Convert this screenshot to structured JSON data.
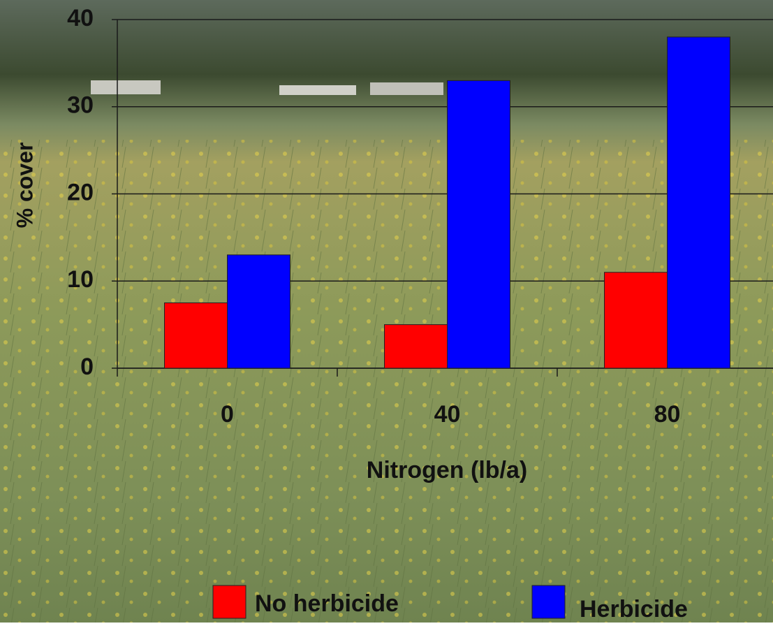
{
  "chart_data": {
    "type": "bar",
    "categories": [
      "0",
      "40",
      "80"
    ],
    "series": [
      {
        "name": "No herbicide",
        "color": "#ff0000",
        "values": [
          7.5,
          5,
          11
        ]
      },
      {
        "name": "Herbicide",
        "color": "#0000ff",
        "values": [
          13,
          33,
          38
        ]
      }
    ],
    "xlabel": "Nitrogen (lb/a)",
    "ylabel": "% cover",
    "ylim": [
      0,
      40
    ],
    "yticks": [
      0,
      10,
      20,
      30,
      40
    ],
    "grid": true,
    "legend": "bottom"
  }
}
